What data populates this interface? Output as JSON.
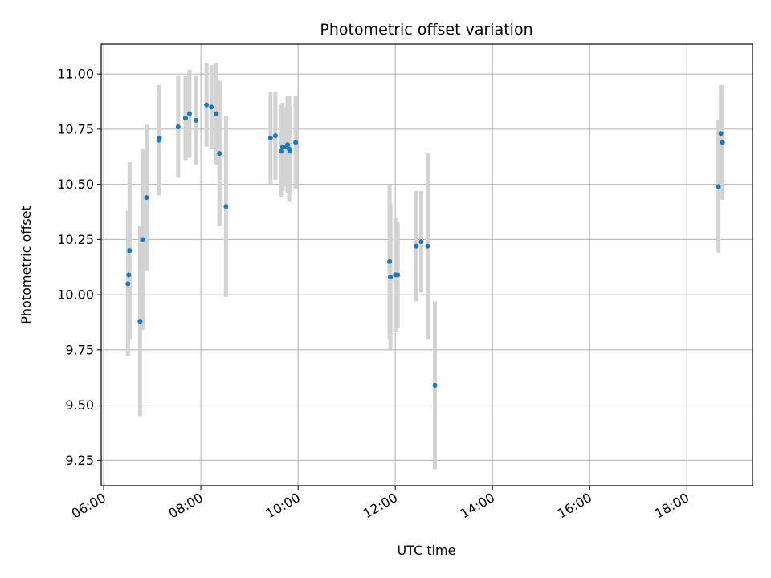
{
  "chart_data": {
    "type": "scatter",
    "title": "Photometric offset variation",
    "xlabel": "UTC time",
    "ylabel": "Photometric offset",
    "grid": true,
    "x_ticks": [
      "06:00",
      "08:00",
      "10:00",
      "12:00",
      "14:00",
      "16:00",
      "18:00"
    ],
    "x_tick_hours": [
      6,
      8,
      10,
      12,
      14,
      16,
      18
    ],
    "y_ticks": [
      "9.25",
      "9.50",
      "9.75",
      "10.00",
      "10.25",
      "10.50",
      "10.75",
      "11.00"
    ],
    "y_tick_values": [
      9.25,
      9.5,
      9.75,
      10.0,
      10.25,
      10.5,
      10.75,
      11.0
    ],
    "xlim_hours": [
      5.95,
      19.35
    ],
    "ylim": [
      9.135,
      11.135
    ],
    "point_color": "#1f77b4",
    "errorbar_color": "#d3d3d3",
    "points": [
      {
        "time": "06:30",
        "y": 10.05,
        "err": 0.33
      },
      {
        "time": "06:31",
        "y": 10.09,
        "err": 0.29
      },
      {
        "time": "06:32",
        "y": 10.2,
        "err": 0.4
      },
      {
        "time": "06:45",
        "y": 9.88,
        "err": 0.43
      },
      {
        "time": "06:48",
        "y": 10.25,
        "err": 0.41
      },
      {
        "time": "06:53",
        "y": 10.44,
        "err": 0.33
      },
      {
        "time": "07:08",
        "y": 10.7,
        "err": 0.25
      },
      {
        "time": "07:09",
        "y": 10.71,
        "err": 0.24
      },
      {
        "time": "07:32",
        "y": 10.76,
        "err": 0.23
      },
      {
        "time": "07:41",
        "y": 10.8,
        "err": 0.19
      },
      {
        "time": "07:46",
        "y": 10.82,
        "err": 0.2
      },
      {
        "time": "07:54",
        "y": 10.79,
        "err": 0.2
      },
      {
        "time": "08:07",
        "y": 10.86,
        "err": 0.19
      },
      {
        "time": "08:13",
        "y": 10.85,
        "err": 0.19
      },
      {
        "time": "08:19",
        "y": 10.82,
        "err": 0.23
      },
      {
        "time": "08:23",
        "y": 10.64,
        "err": 0.33
      },
      {
        "time": "08:31",
        "y": 10.4,
        "err": 0.41
      },
      {
        "time": "09:26",
        "y": 10.71,
        "err": 0.21
      },
      {
        "time": "09:32",
        "y": 10.72,
        "err": 0.2
      },
      {
        "time": "09:39",
        "y": 10.65,
        "err": 0.21
      },
      {
        "time": "09:41",
        "y": 10.67,
        "err": 0.2
      },
      {
        "time": "09:44",
        "y": 10.67,
        "err": 0.18
      },
      {
        "time": "09:47",
        "y": 10.68,
        "err": 0.22
      },
      {
        "time": "09:49",
        "y": 10.66,
        "err": 0.24
      },
      {
        "time": "09:50",
        "y": 10.65,
        "err": 0.2
      },
      {
        "time": "09:57",
        "y": 10.69,
        "err": 0.21
      },
      {
        "time": "11:53",
        "y": 10.15,
        "err": 0.35
      },
      {
        "time": "11:54",
        "y": 10.08,
        "err": 0.33
      },
      {
        "time": "12:00",
        "y": 10.09,
        "err": 0.26
      },
      {
        "time": "12:03",
        "y": 10.09,
        "err": 0.24
      },
      {
        "time": "12:26",
        "y": 10.22,
        "err": 0.25
      },
      {
        "time": "12:32",
        "y": 10.24,
        "err": 0.23
      },
      {
        "time": "12:40",
        "y": 10.22,
        "err": 0.42
      },
      {
        "time": "12:49",
        "y": 9.59,
        "err": 0.38
      },
      {
        "time": "18:39",
        "y": 10.49,
        "err": 0.3
      },
      {
        "time": "18:42",
        "y": 10.73,
        "err": 0.22
      },
      {
        "time": "18:44",
        "y": 10.69,
        "err": 0.26
      }
    ]
  }
}
